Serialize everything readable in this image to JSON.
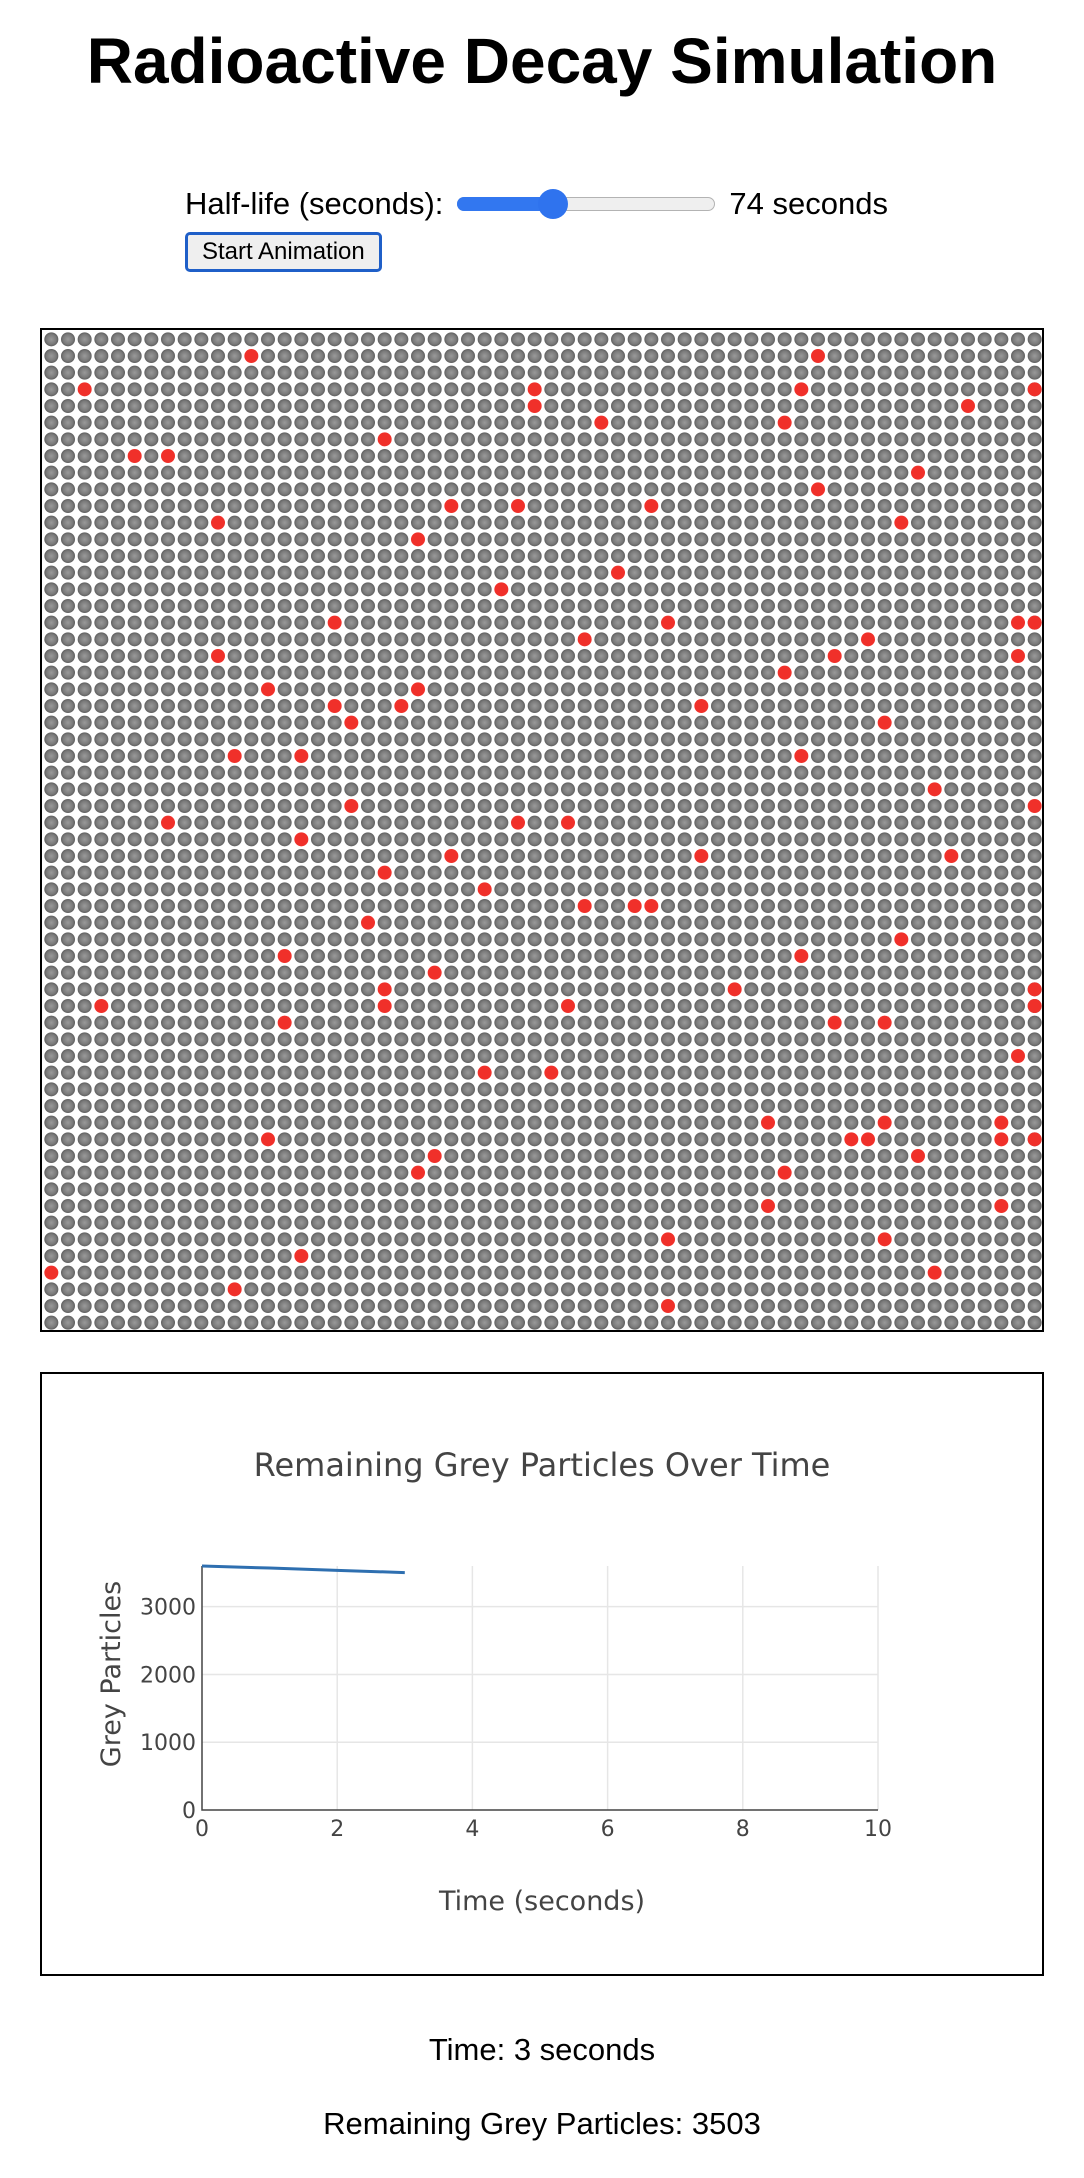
{
  "title": "Radioactive Decay Simulation",
  "controls": {
    "halflife_label": "Half-life (seconds):",
    "halflife_value_text": "74 seconds",
    "halflife_slider_fraction": 0.37,
    "start_button": "Start Animation",
    "accent_color": "#3277f0"
  },
  "grid": {
    "columns": 60,
    "rows": 60,
    "grey_color": "#7a7a7a",
    "decayed_color": "#f0302a",
    "decayed_cells": [
      [
        12,
        1
      ],
      [
        46,
        1
      ],
      [
        2,
        3
      ],
      [
        29,
        3
      ],
      [
        45,
        3
      ],
      [
        61,
        3
      ],
      [
        29,
        4
      ],
      [
        55,
        4
      ],
      [
        33,
        5
      ],
      [
        44,
        5
      ],
      [
        20,
        6
      ],
      [
        5,
        7
      ],
      [
        7,
        7
      ],
      [
        52,
        8
      ],
      [
        46,
        9
      ],
      [
        24,
        10
      ],
      [
        28,
        10
      ],
      [
        36,
        10
      ],
      [
        10,
        11
      ],
      [
        51,
        11
      ],
      [
        22,
        12
      ],
      [
        34,
        14
      ],
      [
        27,
        15
      ],
      [
        17,
        17
      ],
      [
        37,
        17
      ],
      [
        58,
        17
      ],
      [
        60,
        17
      ],
      [
        32,
        18
      ],
      [
        49,
        18
      ],
      [
        10,
        19
      ],
      [
        47,
        19
      ],
      [
        58,
        19
      ],
      [
        44,
        20
      ],
      [
        13,
        21
      ],
      [
        22,
        21
      ],
      [
        17,
        22
      ],
      [
        21,
        22
      ],
      [
        39,
        22
      ],
      [
        18,
        23
      ],
      [
        50,
        23
      ],
      [
        11,
        25
      ],
      [
        15,
        25
      ],
      [
        45,
        25
      ],
      [
        53,
        27
      ],
      [
        18,
        28
      ],
      [
        59,
        28
      ],
      [
        7,
        29
      ],
      [
        28,
        29
      ],
      [
        31,
        29
      ],
      [
        15,
        30
      ],
      [
        24,
        31
      ],
      [
        39,
        31
      ],
      [
        54,
        31
      ],
      [
        20,
        32
      ],
      [
        26,
        33
      ],
      [
        32,
        34
      ],
      [
        35,
        34
      ],
      [
        36,
        34
      ],
      [
        19,
        35
      ],
      [
        51,
        36
      ],
      [
        14,
        37
      ],
      [
        45,
        37
      ],
      [
        23,
        38
      ],
      [
        20,
        39
      ],
      [
        41,
        39
      ],
      [
        61,
        39
      ],
      [
        3,
        40
      ],
      [
        20,
        40
      ],
      [
        31,
        40
      ],
      [
        61,
        40
      ],
      [
        14,
        41
      ],
      [
        47,
        41
      ],
      [
        50,
        41
      ],
      [
        58,
        43
      ],
      [
        26,
        44
      ],
      [
        30,
        44
      ],
      [
        43,
        47
      ],
      [
        50,
        47
      ],
      [
        57,
        47
      ],
      [
        13,
        48
      ],
      [
        48,
        48
      ],
      [
        49,
        48
      ],
      [
        57,
        48
      ],
      [
        60,
        48
      ],
      [
        23,
        49
      ],
      [
        52,
        49
      ],
      [
        22,
        50
      ],
      [
        44,
        50
      ],
      [
        43,
        52
      ],
      [
        57,
        52
      ],
      [
        37,
        54
      ],
      [
        50,
        54
      ],
      [
        15,
        55
      ],
      [
        0,
        56
      ],
      [
        53,
        56
      ],
      [
        11,
        57
      ],
      [
        37,
        58
      ]
    ]
  },
  "chart_data": {
    "type": "line",
    "title": "Remaining Grey Particles Over Time",
    "xlabel": "Time (seconds)",
    "ylabel": "Grey Particles",
    "xlim": [
      0,
      10
    ],
    "ylim": [
      0,
      3600
    ],
    "xticks": [
      0,
      2,
      4,
      6,
      8,
      10
    ],
    "yticks": [
      0,
      1000,
      2000,
      3000
    ],
    "grid": true,
    "line_color": "#2e6fb0",
    "series": [
      {
        "x": [
          0,
          1,
          2,
          3
        ],
        "y": [
          3600,
          3570,
          3535,
          3503
        ]
      }
    ]
  },
  "status": {
    "time_text": "Time: 3 seconds",
    "remaining_text": "Remaining Grey Particles: 3503"
  }
}
